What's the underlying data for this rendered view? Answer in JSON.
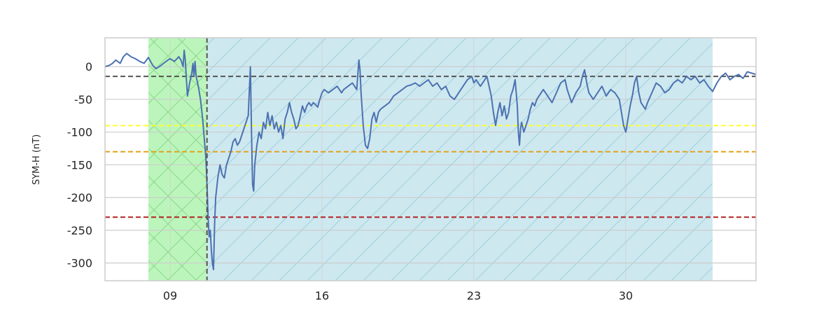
{
  "chart_data": {
    "type": "line",
    "title": "",
    "xlabel": "",
    "ylabel": "SYM-H (nT)",
    "xlim": [
      6.0,
      36.0
    ],
    "ylim": [
      -327,
      44
    ],
    "x_ticks": [
      {
        "value": 9,
        "label": "09"
      },
      {
        "value": 16,
        "label": "16"
      },
      {
        "value": 23,
        "label": "23"
      },
      {
        "value": 30,
        "label": "30"
      }
    ],
    "y_ticks": [
      0,
      -50,
      -100,
      -150,
      -200,
      -250,
      -300
    ],
    "grid": true,
    "shaded_regions": [
      {
        "x_start": 8.0,
        "x_end": 10.7,
        "color": "#90ee90",
        "hatch": "cross",
        "opacity": 0.6
      },
      {
        "x_start": 10.7,
        "x_end": 34.0,
        "color": "#add8e6",
        "hatch": "diagonal",
        "opacity": 0.6
      }
    ],
    "vertical_lines": [
      {
        "x": 10.7,
        "color": "#555555",
        "style": "dashed"
      }
    ],
    "horizontal_lines": [
      {
        "y": -15,
        "color": "#555555",
        "style": "dashed"
      },
      {
        "y": -90,
        "color": "#ffff33",
        "style": "dashed"
      },
      {
        "y": -130,
        "color": "#e3a21a",
        "style": "dashed"
      },
      {
        "y": -230,
        "color": "#b22222",
        "style": "dashed"
      }
    ],
    "series": [
      {
        "color": "#4c72b0",
        "points": [
          [
            6.0,
            0
          ],
          [
            6.2,
            2
          ],
          [
            6.35,
            5
          ],
          [
            6.5,
            10
          ],
          [
            6.7,
            5
          ],
          [
            6.85,
            15
          ],
          [
            7.0,
            20
          ],
          [
            7.2,
            15
          ],
          [
            7.4,
            12
          ],
          [
            7.6,
            8
          ],
          [
            7.8,
            5
          ],
          [
            8.0,
            14
          ],
          [
            8.1,
            8
          ],
          [
            8.2,
            2
          ],
          [
            8.35,
            -3
          ],
          [
            8.5,
            0
          ],
          [
            8.7,
            5
          ],
          [
            8.9,
            10
          ],
          [
            9.0,
            12
          ],
          [
            9.2,
            8
          ],
          [
            9.4,
            15
          ],
          [
            9.5,
            10
          ],
          [
            9.6,
            0
          ],
          [
            9.65,
            25
          ],
          [
            9.7,
            10
          ],
          [
            9.75,
            -20
          ],
          [
            9.8,
            -45
          ],
          [
            9.9,
            -25
          ],
          [
            10.0,
            -10
          ],
          [
            10.05,
            5
          ],
          [
            10.1,
            -15
          ],
          [
            10.15,
            8
          ],
          [
            10.2,
            -15
          ],
          [
            10.3,
            -30
          ],
          [
            10.4,
            -50
          ],
          [
            10.5,
            -80
          ],
          [
            10.6,
            -120
          ],
          [
            10.65,
            -140
          ],
          [
            10.7,
            -180
          ],
          [
            10.75,
            -230
          ],
          [
            10.8,
            -260
          ],
          [
            10.85,
            -250
          ],
          [
            10.9,
            -280
          ],
          [
            10.95,
            -300
          ],
          [
            11.0,
            -310
          ],
          [
            11.05,
            -240
          ],
          [
            11.1,
            -200
          ],
          [
            11.2,
            -170
          ],
          [
            11.3,
            -150
          ],
          [
            11.4,
            -165
          ],
          [
            11.5,
            -170
          ],
          [
            11.6,
            -150
          ],
          [
            11.7,
            -140
          ],
          [
            11.8,
            -130
          ],
          [
            11.9,
            -115
          ],
          [
            12.0,
            -110
          ],
          [
            12.1,
            -120
          ],
          [
            12.2,
            -115
          ],
          [
            12.3,
            -105
          ],
          [
            12.4,
            -95
          ],
          [
            12.5,
            -85
          ],
          [
            12.6,
            -75
          ],
          [
            12.7,
            0
          ],
          [
            12.75,
            -100
          ],
          [
            12.8,
            -180
          ],
          [
            12.85,
            -190
          ],
          [
            12.9,
            -150
          ],
          [
            13.0,
            -120
          ],
          [
            13.1,
            -100
          ],
          [
            13.2,
            -110
          ],
          [
            13.3,
            -85
          ],
          [
            13.4,
            -95
          ],
          [
            13.5,
            -70
          ],
          [
            13.6,
            -90
          ],
          [
            13.7,
            -75
          ],
          [
            13.8,
            -95
          ],
          [
            13.9,
            -85
          ],
          [
            14.0,
            -100
          ],
          [
            14.1,
            -90
          ],
          [
            14.2,
            -110
          ],
          [
            14.3,
            -80
          ],
          [
            14.4,
            -70
          ],
          [
            14.5,
            -55
          ],
          [
            14.6,
            -70
          ],
          [
            14.7,
            -80
          ],
          [
            14.8,
            -95
          ],
          [
            14.9,
            -90
          ],
          [
            15.0,
            -75
          ],
          [
            15.1,
            -60
          ],
          [
            15.2,
            -70
          ],
          [
            15.3,
            -60
          ],
          [
            15.4,
            -55
          ],
          [
            15.5,
            -60
          ],
          [
            15.6,
            -55
          ],
          [
            15.7,
            -58
          ],
          [
            15.8,
            -62
          ],
          [
            15.9,
            -50
          ],
          [
            16.0,
            -40
          ],
          [
            16.1,
            -35
          ],
          [
            16.3,
            -40
          ],
          [
            16.5,
            -35
          ],
          [
            16.7,
            -30
          ],
          [
            16.9,
            -40
          ],
          [
            17.0,
            -35
          ],
          [
            17.2,
            -30
          ],
          [
            17.4,
            -25
          ],
          [
            17.5,
            -30
          ],
          [
            17.6,
            -35
          ],
          [
            17.7,
            10
          ],
          [
            17.75,
            -5
          ],
          [
            17.8,
            -40
          ],
          [
            17.9,
            -90
          ],
          [
            18.0,
            -120
          ],
          [
            18.1,
            -125
          ],
          [
            18.2,
            -110
          ],
          [
            18.3,
            -80
          ],
          [
            18.4,
            -70
          ],
          [
            18.5,
            -85
          ],
          [
            18.6,
            -70
          ],
          [
            18.7,
            -65
          ],
          [
            18.9,
            -60
          ],
          [
            19.1,
            -55
          ],
          [
            19.3,
            -45
          ],
          [
            19.5,
            -40
          ],
          [
            19.7,
            -35
          ],
          [
            19.9,
            -30
          ],
          [
            20.1,
            -28
          ],
          [
            20.3,
            -25
          ],
          [
            20.5,
            -30
          ],
          [
            20.7,
            -25
          ],
          [
            20.9,
            -20
          ],
          [
            21.1,
            -30
          ],
          [
            21.3,
            -25
          ],
          [
            21.5,
            -35
          ],
          [
            21.7,
            -30
          ],
          [
            21.9,
            -45
          ],
          [
            22.1,
            -50
          ],
          [
            22.3,
            -40
          ],
          [
            22.5,
            -30
          ],
          [
            22.7,
            -20
          ],
          [
            22.9,
            -15
          ],
          [
            23.0,
            -25
          ],
          [
            23.1,
            -20
          ],
          [
            23.3,
            -30
          ],
          [
            23.5,
            -20
          ],
          [
            23.6,
            -15
          ],
          [
            23.7,
            -30
          ],
          [
            23.8,
            -45
          ],
          [
            23.9,
            -70
          ],
          [
            24.0,
            -90
          ],
          [
            24.1,
            -70
          ],
          [
            24.2,
            -55
          ],
          [
            24.3,
            -75
          ],
          [
            24.4,
            -60
          ],
          [
            24.5,
            -80
          ],
          [
            24.6,
            -70
          ],
          [
            24.7,
            -45
          ],
          [
            24.8,
            -35
          ],
          [
            24.9,
            -20
          ],
          [
            25.0,
            -60
          ],
          [
            25.05,
            -100
          ],
          [
            25.1,
            -120
          ],
          [
            25.15,
            -95
          ],
          [
            25.2,
            -85
          ],
          [
            25.3,
            -100
          ],
          [
            25.4,
            -90
          ],
          [
            25.5,
            -80
          ],
          [
            25.6,
            -65
          ],
          [
            25.7,
            -55
          ],
          [
            25.8,
            -60
          ],
          [
            25.9,
            -50
          ],
          [
            26.0,
            -45
          ],
          [
            26.2,
            -35
          ],
          [
            26.4,
            -45
          ],
          [
            26.6,
            -55
          ],
          [
            26.8,
            -40
          ],
          [
            27.0,
            -25
          ],
          [
            27.2,
            -20
          ],
          [
            27.3,
            -35
          ],
          [
            27.5,
            -55
          ],
          [
            27.7,
            -40
          ],
          [
            27.9,
            -30
          ],
          [
            28.0,
            -15
          ],
          [
            28.1,
            -5
          ],
          [
            28.2,
            -25
          ],
          [
            28.3,
            -40
          ],
          [
            28.5,
            -50
          ],
          [
            28.7,
            -40
          ],
          [
            28.9,
            -30
          ],
          [
            29.1,
            -45
          ],
          [
            29.3,
            -35
          ],
          [
            29.5,
            -40
          ],
          [
            29.7,
            -50
          ],
          [
            29.8,
            -70
          ],
          [
            29.9,
            -90
          ],
          [
            30.0,
            -100
          ],
          [
            30.1,
            -80
          ],
          [
            30.2,
            -60
          ],
          [
            30.3,
            -45
          ],
          [
            30.4,
            -25
          ],
          [
            30.5,
            -15
          ],
          [
            30.6,
            -40
          ],
          [
            30.7,
            -55
          ],
          [
            30.8,
            -60
          ],
          [
            30.9,
            -65
          ],
          [
            31.0,
            -55
          ],
          [
            31.2,
            -40
          ],
          [
            31.4,
            -25
          ],
          [
            31.6,
            -30
          ],
          [
            31.8,
            -40
          ],
          [
            32.0,
            -35
          ],
          [
            32.2,
            -25
          ],
          [
            32.4,
            -20
          ],
          [
            32.6,
            -25
          ],
          [
            32.8,
            -15
          ],
          [
            33.0,
            -20
          ],
          [
            33.2,
            -15
          ],
          [
            33.4,
            -25
          ],
          [
            33.6,
            -20
          ],
          [
            33.8,
            -30
          ],
          [
            34.0,
            -38
          ],
          [
            34.2,
            -25
          ],
          [
            34.4,
            -15
          ],
          [
            34.6,
            -10
          ],
          [
            34.8,
            -20
          ],
          [
            35.0,
            -15
          ],
          [
            35.2,
            -12
          ],
          [
            35.4,
            -18
          ],
          [
            35.6,
            -8
          ],
          [
            35.8,
            -10
          ],
          [
            36.0,
            -12
          ]
        ]
      }
    ]
  }
}
